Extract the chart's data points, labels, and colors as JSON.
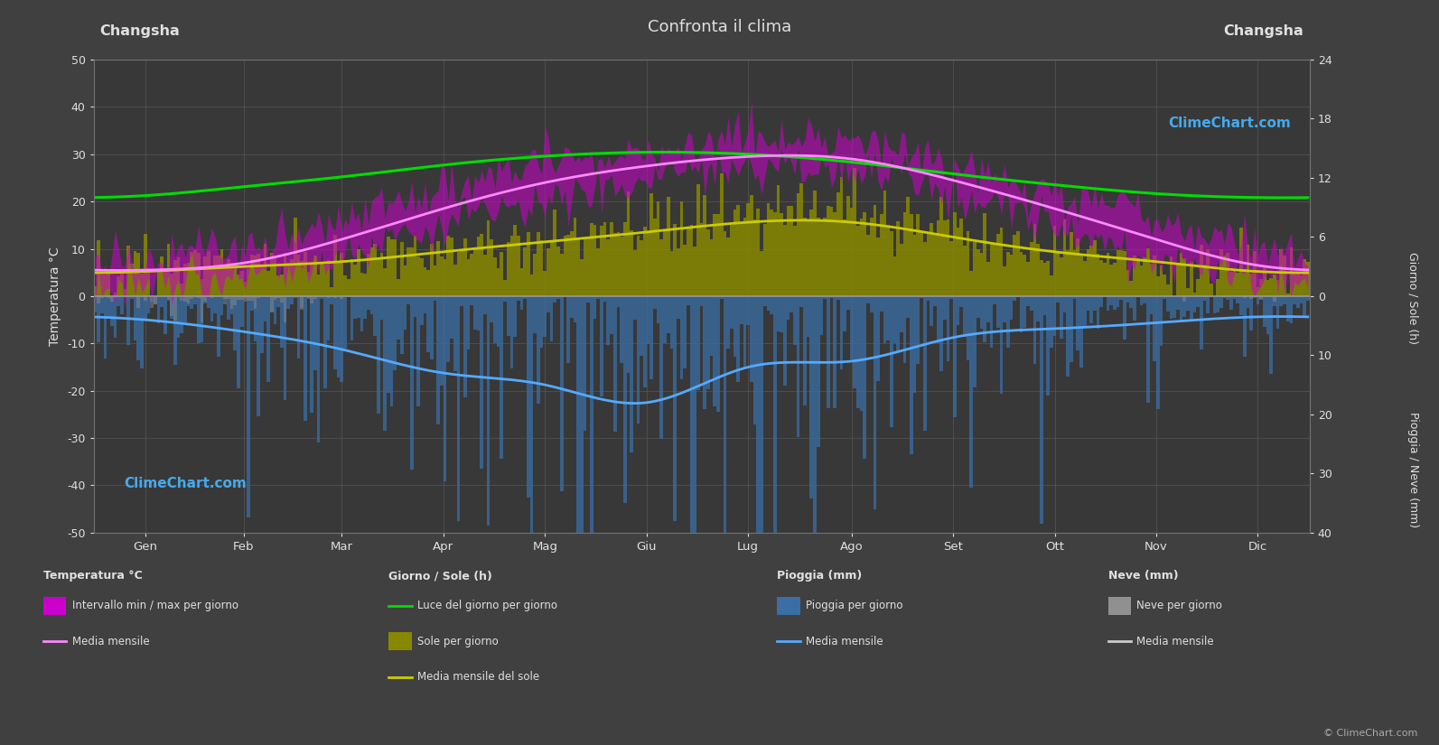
{
  "title": "Confronta il clima",
  "city_left": "Changsha",
  "city_right": "Changsha",
  "background_color": "#404040",
  "plot_bg_color": "#383838",
  "months": [
    "Gen",
    "Feb",
    "Mar",
    "Apr",
    "Mag",
    "Giu",
    "Lug",
    "Ago",
    "Set",
    "Ott",
    "Nov",
    "Dic"
  ],
  "days_per_month": [
    31,
    28,
    31,
    30,
    31,
    30,
    31,
    31,
    30,
    31,
    30,
    31
  ],
  "temp_yticks": [
    -50,
    -40,
    -30,
    -20,
    -10,
    0,
    10,
    20,
    30,
    40,
    50
  ],
  "sun_yticks": [
    0,
    6,
    12,
    18,
    24
  ],
  "rain_yticks": [
    0,
    10,
    20,
    30,
    40
  ],
  "ylabel_left": "Temperatura °C",
  "ylabel_right_top": "Giorno / Sole (h)",
  "ylabel_right_bottom": "Pioggia / Neve (mm)",
  "temp_avg_monthly": [
    5.5,
    7.0,
    12.0,
    18.5,
    24.0,
    27.5,
    29.5,
    29.0,
    24.5,
    18.5,
    12.0,
    6.5
  ],
  "temp_min_monthly": [
    2.0,
    4.0,
    9.0,
    15.0,
    20.5,
    24.5,
    27.0,
    26.5,
    21.5,
    15.5,
    8.5,
    3.0
  ],
  "temp_max_monthly": [
    8.5,
    11.0,
    16.0,
    22.5,
    28.0,
    31.0,
    33.5,
    32.5,
    27.5,
    22.0,
    16.5,
    10.0
  ],
  "sun_daylight_monthly": [
    10.2,
    11.1,
    12.1,
    13.3,
    14.2,
    14.6,
    14.4,
    13.6,
    12.4,
    11.3,
    10.4,
    10.0
  ],
  "sun_hours_monthly": [
    2.5,
    3.0,
    3.5,
    4.5,
    5.5,
    6.5,
    8.5,
    8.5,
    6.5,
    4.5,
    3.5,
    2.5
  ],
  "sun_avg_monthly": [
    2.5,
    3.0,
    3.5,
    4.5,
    5.5,
    6.5,
    7.5,
    7.5,
    6.0,
    4.5,
    3.5,
    2.5
  ],
  "rain_per_day_monthly": [
    4.0,
    6.0,
    9.0,
    13.0,
    15.0,
    18.0,
    12.0,
    11.0,
    7.0,
    5.5,
    4.5,
    3.5
  ],
  "snow_per_day_monthly": [
    1.5,
    2.0,
    0.3,
    0.0,
    0.0,
    0.0,
    0.0,
    0.0,
    0.0,
    0.0,
    0.0,
    0.8
  ],
  "rain_avg_monthly_mm": [
    4.0,
    6.0,
    9.0,
    13.0,
    15.0,
    18.0,
    12.0,
    11.0,
    7.0,
    5.5,
    4.5,
    3.5
  ],
  "snow_avg_monthly_mm": [
    1.5,
    2.0,
    0.5,
    0.0,
    0.0,
    0.0,
    0.0,
    0.0,
    0.0,
    0.0,
    0.0,
    1.0
  ],
  "colors": {
    "temp_band": "#cc00cc",
    "temp_avg_line": "#ff88ff",
    "sun_bars": "#888800",
    "sun_avg_line": "#cccc00",
    "daylight_line": "#00dd00",
    "rain_bars": "#3a6ea5",
    "snow_bars": "#909090",
    "rain_avg_line": "#55aaff",
    "snow_avg_line": "#cccccc",
    "grid_color": "#585858",
    "text_color": "#e0e0e0",
    "zero_line": "#999999",
    "spine_color": "#707070"
  },
  "watermark_color": "#44aaee",
  "watermark": "ClimeChart.com",
  "copyright": "© ClimeChart.com",
  "sun_temp_scale": 2.0833,
  "rain_temp_scale": 1.25
}
